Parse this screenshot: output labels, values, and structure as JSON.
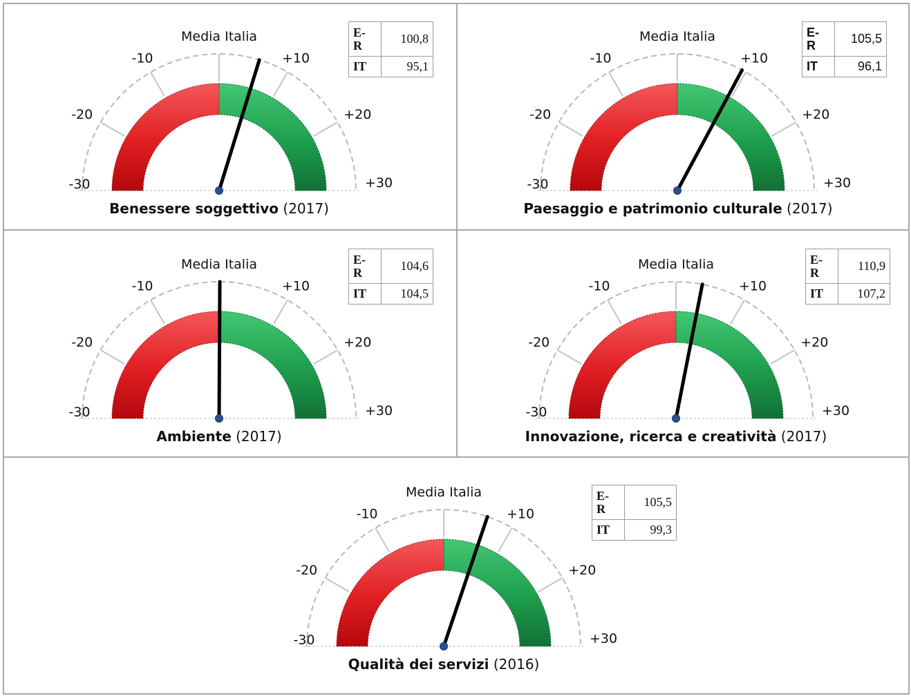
{
  "chart_data": [
    {
      "type": "gauge",
      "title": "Benessere soggettivo",
      "year": "(2017)",
      "reference_label": "Media Italia",
      "range": [
        -30,
        30
      ],
      "ticks": [
        "-30",
        "-20",
        "-10",
        "+10",
        "+20",
        "+30"
      ],
      "colors": {
        "below": "#e01e22",
        "above": "#1d9e4c"
      },
      "rows": [
        {
          "label": "E-R",
          "value": "100,8"
        },
        {
          "label": "IT",
          "value": "95,1"
        }
      ],
      "needle_value": 5.7
    },
    {
      "type": "gauge",
      "title": "Paesaggio e patrimonio culturale",
      "year": "(2017)",
      "reference_label": "Media Italia",
      "range": [
        -30,
        30
      ],
      "ticks": [
        "-30",
        "-20",
        "-10",
        "+10",
        "+20",
        "+30"
      ],
      "colors": {
        "below": "#e01e22",
        "above": "#1d9e4c"
      },
      "rows": [
        {
          "label": "E-R",
          "value": "105,5"
        },
        {
          "label": "IT",
          "value": "96,1"
        }
      ],
      "needle_value": 9.4
    },
    {
      "type": "gauge",
      "title": "Ambiente",
      "year": "(2017)",
      "reference_label": "Media Italia",
      "range": [
        -30,
        30
      ],
      "ticks": [
        "-30",
        "-20",
        "-10",
        "+10",
        "+20",
        "+30"
      ],
      "colors": {
        "below": "#e01e22",
        "above": "#1d9e4c"
      },
      "rows": [
        {
          "label": "E-R",
          "value": "104,6"
        },
        {
          "label": "IT",
          "value": "104,5"
        }
      ],
      "needle_value": 0.1
    },
    {
      "type": "gauge",
      "title": "Innovazione, ricerca e creatività",
      "year": "(2017)",
      "reference_label": "Media Italia",
      "range": [
        -30,
        30
      ],
      "ticks": [
        "-30",
        "-20",
        "-10",
        "+10",
        "+20",
        "+30"
      ],
      "colors": {
        "below": "#e01e22",
        "above": "#1d9e4c"
      },
      "rows": [
        {
          "label": "E-R",
          "value": "110,9"
        },
        {
          "label": "IT",
          "value": "107,2"
        }
      ],
      "needle_value": 3.7
    },
    {
      "type": "gauge",
      "title": "Qualità dei servizi",
      "year": "(2016)",
      "reference_label": "Media Italia",
      "range": [
        -30,
        30
      ],
      "ticks": [
        "-30",
        "-20",
        "-10",
        "+10",
        "+20",
        "+30"
      ],
      "colors": {
        "below": "#e01e22",
        "above": "#1d9e4c"
      },
      "rows": [
        {
          "label": "E-R",
          "value": "105,5"
        },
        {
          "label": "IT",
          "value": "99,3"
        }
      ],
      "needle_value": 6.2
    }
  ]
}
